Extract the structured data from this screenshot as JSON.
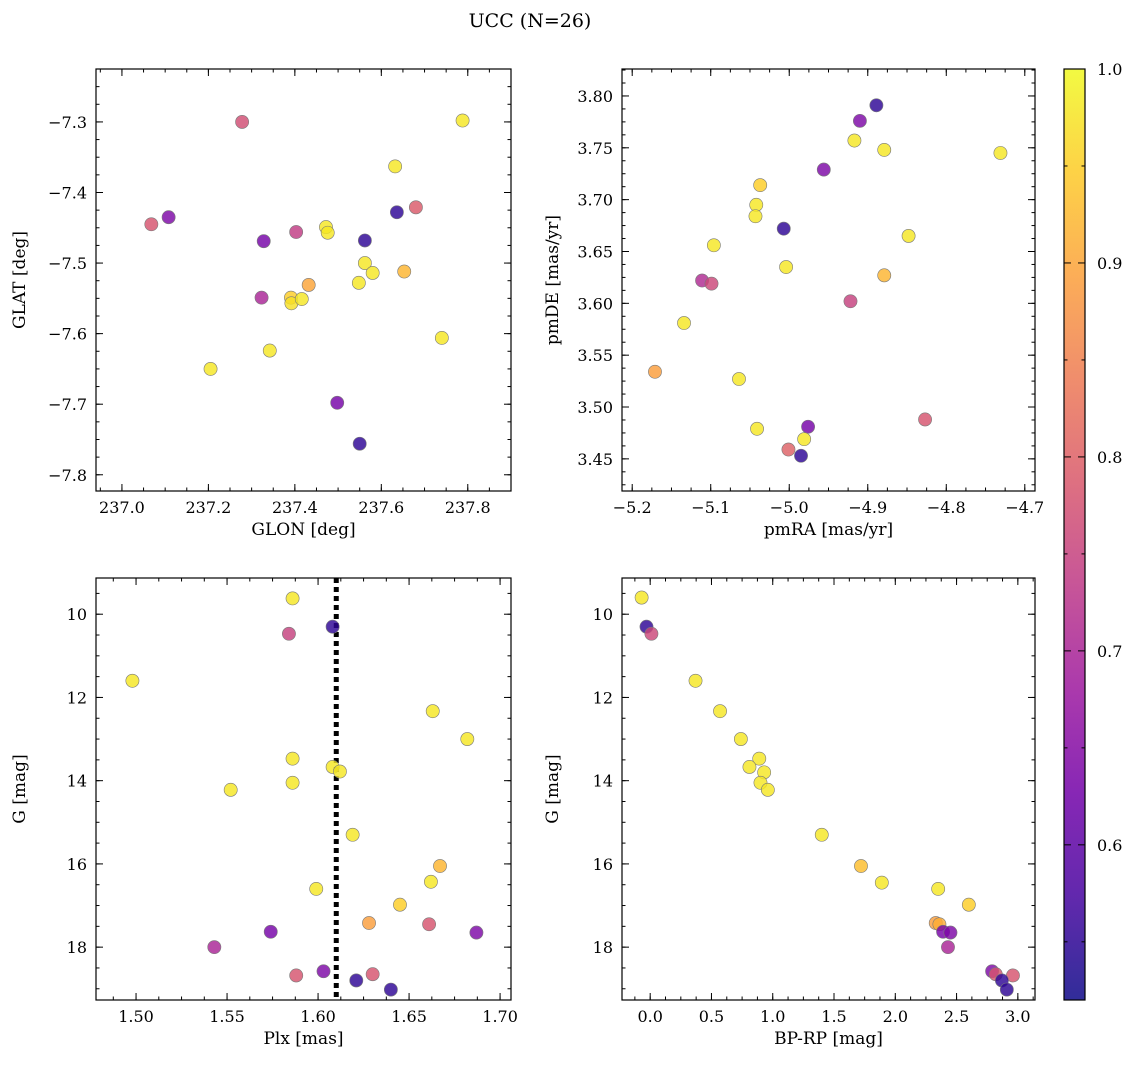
{
  "figure": {
    "title": "UCC (N=26)"
  },
  "colormap": {
    "name": "plasma",
    "stops": [
      "#0d0887",
      "#46039f",
      "#7201a8",
      "#9c179e",
      "#bd3786",
      "#d8576b",
      "#ed7953",
      "#fb9f3a",
      "#fdca26",
      "#f0f921"
    ],
    "range": [
      0.52,
      1.0
    ],
    "ticks": [
      "0.6",
      "0.7",
      "0.8",
      "0.9",
      "1.0"
    ],
    "tick_values": [
      0.6,
      0.7,
      0.8,
      0.9,
      1.0
    ]
  },
  "chart_data": [
    {
      "type": "scatter",
      "xlabel": "GLON [deg]",
      "ylabel": "GLAT [deg]",
      "xlim": [
        236.94,
        237.9
      ],
      "ylim": [
        -7.823,
        -7.225
      ],
      "y_inverted": false,
      "xticks": [
        237.0,
        237.2,
        237.4,
        237.6,
        237.8
      ],
      "xtick_labels": [
        "237.0",
        "237.2",
        "237.4",
        "237.6",
        "237.8"
      ],
      "xminor": 0.05,
      "yticks": [
        -7.3,
        -7.4,
        -7.5,
        -7.6,
        -7.7,
        -7.8
      ],
      "ytick_labels": [
        "−7.3",
        "−7.4",
        "−7.5",
        "−7.6",
        "−7.7",
        "−7.8"
      ],
      "yminor": 0.025,
      "points": [
        {
          "x": 237.278,
          "y": -7.3,
          "c": 0.77
        },
        {
          "x": 237.788,
          "y": -7.298,
          "c": 0.98
        },
        {
          "x": 237.632,
          "y": -7.363,
          "c": 0.98
        },
        {
          "x": 237.068,
          "y": -7.445,
          "c": 0.78
        },
        {
          "x": 237.108,
          "y": -7.435,
          "c": 0.64
        },
        {
          "x": 237.68,
          "y": -7.421,
          "c": 0.79
        },
        {
          "x": 237.636,
          "y": -7.428,
          "c": 0.55
        },
        {
          "x": 237.328,
          "y": -7.469,
          "c": 0.63
        },
        {
          "x": 237.403,
          "y": -7.456,
          "c": 0.74
        },
        {
          "x": 237.472,
          "y": -7.449,
          "c": 0.98
        },
        {
          "x": 237.476,
          "y": -7.457,
          "c": 0.98
        },
        {
          "x": 237.562,
          "y": -7.468,
          "c": 0.55
        },
        {
          "x": 237.562,
          "y": -7.5,
          "c": 0.98
        },
        {
          "x": 237.58,
          "y": -7.514,
          "c": 0.98
        },
        {
          "x": 237.653,
          "y": -7.512,
          "c": 0.92
        },
        {
          "x": 237.432,
          "y": -7.531,
          "c": 0.9
        },
        {
          "x": 237.548,
          "y": -7.528,
          "c": 0.98
        },
        {
          "x": 237.323,
          "y": -7.549,
          "c": 0.7
        },
        {
          "x": 237.391,
          "y": -7.549,
          "c": 0.95
        },
        {
          "x": 237.392,
          "y": -7.557,
          "c": 0.97
        },
        {
          "x": 237.416,
          "y": -7.551,
          "c": 0.98
        },
        {
          "x": 237.74,
          "y": -7.606,
          "c": 0.98
        },
        {
          "x": 237.342,
          "y": -7.624,
          "c": 0.98
        },
        {
          "x": 237.205,
          "y": -7.65,
          "c": 0.98
        },
        {
          "x": 237.498,
          "y": -7.698,
          "c": 0.63
        },
        {
          "x": 237.55,
          "y": -7.756,
          "c": 0.55
        }
      ]
    },
    {
      "type": "scatter",
      "xlabel": "pmRA [mas/yr]",
      "ylabel": "pmDE [mas/yr]",
      "xlim": [
        -5.213,
        -4.687
      ],
      "ylim": [
        3.419,
        3.826
      ],
      "y_inverted": false,
      "xticks": [
        -5.2,
        -5.1,
        -5.0,
        -4.9,
        -4.8,
        -4.7
      ],
      "xtick_labels": [
        "−5.2",
        "−5.1",
        "−5.0",
        "−4.9",
        "−4.8",
        "−4.7"
      ],
      "xminor": 0.025,
      "yticks": [
        3.45,
        3.5,
        3.55,
        3.6,
        3.65,
        3.7,
        3.75,
        3.8
      ],
      "ytick_labels": [
        "3.45",
        "3.50",
        "3.55",
        "3.60",
        "3.65",
        "3.70",
        "3.75",
        "3.80"
      ],
      "yminor": 0.0125,
      "points": [
        {
          "x": -4.889,
          "y": 3.791,
          "c": 0.55
        },
        {
          "x": -4.91,
          "y": 3.776,
          "c": 0.64
        },
        {
          "x": -4.917,
          "y": 3.757,
          "c": 0.98
        },
        {
          "x": -4.879,
          "y": 3.748,
          "c": 0.98
        },
        {
          "x": -4.731,
          "y": 3.745,
          "c": 0.98
        },
        {
          "x": -4.956,
          "y": 3.729,
          "c": 0.64
        },
        {
          "x": -5.037,
          "y": 3.714,
          "c": 0.95
        },
        {
          "x": -5.042,
          "y": 3.695,
          "c": 0.98
        },
        {
          "x": -5.043,
          "y": 3.684,
          "c": 0.98
        },
        {
          "x": -5.007,
          "y": 3.672,
          "c": 0.55
        },
        {
          "x": -4.848,
          "y": 3.665,
          "c": 0.98
        },
        {
          "x": -5.096,
          "y": 3.656,
          "c": 0.98
        },
        {
          "x": -5.004,
          "y": 3.635,
          "c": 0.98
        },
        {
          "x": -4.879,
          "y": 3.627,
          "c": 0.92
        },
        {
          "x": -5.111,
          "y": 3.622,
          "c": 0.71
        },
        {
          "x": -5.099,
          "y": 3.619,
          "c": 0.76
        },
        {
          "x": -4.922,
          "y": 3.602,
          "c": 0.75
        },
        {
          "x": -5.134,
          "y": 3.581,
          "c": 0.98
        },
        {
          "x": -5.171,
          "y": 3.534,
          "c": 0.89
        },
        {
          "x": -5.064,
          "y": 3.527,
          "c": 0.98
        },
        {
          "x": -4.827,
          "y": 3.488,
          "c": 0.78
        },
        {
          "x": -4.976,
          "y": 3.481,
          "c": 0.63
        },
        {
          "x": -5.041,
          "y": 3.479,
          "c": 0.98
        },
        {
          "x": -4.981,
          "y": 3.469,
          "c": 0.98
        },
        {
          "x": -5.001,
          "y": 3.459,
          "c": 0.8
        },
        {
          "x": -4.985,
          "y": 3.453,
          "c": 0.55
        }
      ]
    },
    {
      "type": "scatter",
      "xlabel": "Plx [mas]",
      "ylabel": "G [mag]",
      "xlim": [
        1.478,
        1.706
      ],
      "ylim": [
        9.13,
        19.27
      ],
      "y_inverted": true,
      "xticks": [
        1.5,
        1.55,
        1.6,
        1.65,
        1.7
      ],
      "xtick_labels": [
        "1.50",
        "1.55",
        "1.60",
        "1.65",
        "1.70"
      ],
      "xminor": 0.0125,
      "yticks": [
        10,
        12,
        14,
        16,
        18
      ],
      "ytick_labels": [
        "10",
        "12",
        "14",
        "16",
        "18"
      ],
      "yminor": 0.5,
      "vline": {
        "x": 1.61,
        "style": "dotted",
        "color": "#000000"
      },
      "points": [
        {
          "x": 1.586,
          "y": 9.62,
          "c": 0.98
        },
        {
          "x": 1.584,
          "y": 10.47,
          "c": 0.75
        },
        {
          "x": 1.608,
          "y": 10.3,
          "c": 0.55
        },
        {
          "x": 1.498,
          "y": 11.6,
          "c": 0.98
        },
        {
          "x": 1.663,
          "y": 12.33,
          "c": 0.98
        },
        {
          "x": 1.682,
          "y": 13.0,
          "c": 0.98
        },
        {
          "x": 1.586,
          "y": 13.47,
          "c": 0.98
        },
        {
          "x": 1.608,
          "y": 13.67,
          "c": 0.98
        },
        {
          "x": 1.612,
          "y": 13.78,
          "c": 0.98
        },
        {
          "x": 1.586,
          "y": 14.05,
          "c": 0.98
        },
        {
          "x": 1.552,
          "y": 14.22,
          "c": 0.98
        },
        {
          "x": 1.619,
          "y": 15.3,
          "c": 0.98
        },
        {
          "x": 1.667,
          "y": 16.05,
          "c": 0.92
        },
        {
          "x": 1.662,
          "y": 16.43,
          "c": 0.98
        },
        {
          "x": 1.599,
          "y": 16.6,
          "c": 0.98
        },
        {
          "x": 1.645,
          "y": 16.98,
          "c": 0.95
        },
        {
          "x": 1.628,
          "y": 17.42,
          "c": 0.89
        },
        {
          "x": 1.661,
          "y": 17.45,
          "c": 0.78
        },
        {
          "x": 1.574,
          "y": 17.63,
          "c": 0.63
        },
        {
          "x": 1.687,
          "y": 17.65,
          "c": 0.64
        },
        {
          "x": 1.543,
          "y": 18.0,
          "c": 0.7
        },
        {
          "x": 1.603,
          "y": 18.58,
          "c": 0.64
        },
        {
          "x": 1.588,
          "y": 18.68,
          "c": 0.78
        },
        {
          "x": 1.63,
          "y": 18.65,
          "c": 0.78
        },
        {
          "x": 1.621,
          "y": 18.8,
          "c": 0.55
        },
        {
          "x": 1.64,
          "y": 19.02,
          "c": 0.55
        }
      ]
    },
    {
      "type": "scatter",
      "xlabel": "BP-RP [mag]",
      "ylabel": "G [mag]",
      "xlim": [
        -0.23,
        3.14
      ],
      "ylim": [
        9.13,
        19.27
      ],
      "y_inverted": true,
      "xticks": [
        0.0,
        0.5,
        1.0,
        1.5,
        2.0,
        2.5,
        3.0
      ],
      "xtick_labels": [
        "0.0",
        "0.5",
        "1.0",
        "1.5",
        "2.0",
        "2.5",
        "3.0"
      ],
      "xminor": 0.125,
      "yticks": [
        10,
        12,
        14,
        16,
        18
      ],
      "ytick_labels": [
        "10",
        "12",
        "14",
        "16",
        "18"
      ],
      "yminor": 0.5,
      "points": [
        {
          "x": -0.07,
          "y": 9.6,
          "c": 0.98
        },
        {
          "x": -0.03,
          "y": 10.3,
          "c": 0.55
        },
        {
          "x": 0.01,
          "y": 10.47,
          "c": 0.76
        },
        {
          "x": 0.37,
          "y": 11.6,
          "c": 0.98
        },
        {
          "x": 0.57,
          "y": 12.33,
          "c": 0.98
        },
        {
          "x": 0.74,
          "y": 13.0,
          "c": 0.98
        },
        {
          "x": 0.89,
          "y": 13.47,
          "c": 0.98
        },
        {
          "x": 0.81,
          "y": 13.67,
          "c": 0.98
        },
        {
          "x": 0.93,
          "y": 13.8,
          "c": 0.98
        },
        {
          "x": 0.9,
          "y": 14.05,
          "c": 0.98
        },
        {
          "x": 0.96,
          "y": 14.22,
          "c": 0.98
        },
        {
          "x": 1.4,
          "y": 15.3,
          "c": 0.98
        },
        {
          "x": 1.72,
          "y": 16.05,
          "c": 0.93
        },
        {
          "x": 1.89,
          "y": 16.45,
          "c": 0.98
        },
        {
          "x": 2.35,
          "y": 16.6,
          "c": 0.98
        },
        {
          "x": 2.6,
          "y": 16.98,
          "c": 0.95
        },
        {
          "x": 2.33,
          "y": 17.42,
          "c": 0.89
        },
        {
          "x": 2.36,
          "y": 17.45,
          "c": 0.91
        },
        {
          "x": 2.39,
          "y": 17.63,
          "c": 0.63
        },
        {
          "x": 2.45,
          "y": 17.65,
          "c": 0.64
        },
        {
          "x": 2.43,
          "y": 18.0,
          "c": 0.7
        },
        {
          "x": 2.79,
          "y": 18.58,
          "c": 0.64
        },
        {
          "x": 2.82,
          "y": 18.65,
          "c": 0.78
        },
        {
          "x": 2.96,
          "y": 18.68,
          "c": 0.78
        },
        {
          "x": 2.87,
          "y": 18.8,
          "c": 0.55
        },
        {
          "x": 2.91,
          "y": 19.02,
          "c": 0.55
        }
      ]
    }
  ]
}
